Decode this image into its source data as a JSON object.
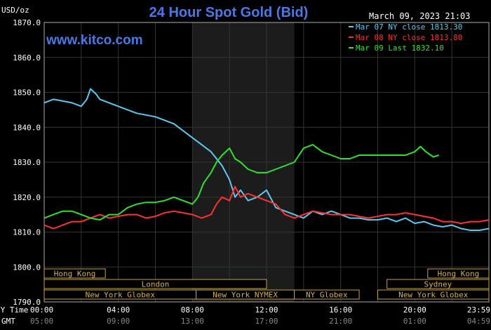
{
  "chart_data": {
    "type": "line",
    "title": "24 Hour Spot Gold (Bid)",
    "watermark": "www.kitco.com",
    "timestamp": "March 09, 2023 21:03",
    "ylabel": "USD/oz",
    "ylim": [
      1790,
      1870
    ],
    "yticks": [
      "1870.0",
      "1860.0",
      "1850.0",
      "1840.0",
      "1830.0",
      "1820.0",
      "1810.0",
      "1800.0",
      "1790.0"
    ],
    "xlabel_top": "NY Time",
    "xlabel_bottom": "GMT",
    "xticks_ny": [
      "00:00",
      "04:00",
      "08:00",
      "12:00",
      "16:00",
      "20:00",
      "23:59"
    ],
    "xticks_gmt": [
      "05:00",
      "09:00",
      "13:00",
      "17:00",
      "21:00",
      "01:00",
      "04:59"
    ],
    "sessions": [
      {
        "name": "Hong Kong",
        "row": 1,
        "start": 0.0,
        "end": 3.3
      },
      {
        "name": "Hong Kong",
        "row": 1,
        "start": 20.7,
        "end": 24.0
      },
      {
        "name": "London",
        "row": 2,
        "start": 0.0,
        "end": 12.0
      },
      {
        "name": "Sydney",
        "row": 2,
        "start": 18.5,
        "end": 24.0
      },
      {
        "name": "New York Globex",
        "row": 3,
        "start": 0.0,
        "end": 8.2
      },
      {
        "name": "New York NYMEX",
        "row": 3,
        "start": 8.2,
        "end": 13.5
      },
      {
        "name": "NY Globex",
        "row": 3,
        "start": 13.5,
        "end": 17.0
      },
      {
        "name": "New York Globex",
        "row": 3,
        "start": 18.0,
        "end": 24.0
      }
    ],
    "shaded_period": [
      8.0,
      13.5
    ],
    "grid": true,
    "series": [
      {
        "name": "Mar 07 NY close 1813.30",
        "color": "#5cc8f0",
        "x": [
          0,
          0.5,
          1.0,
          1.5,
          2.0,
          2.3,
          2.5,
          2.8,
          3.0,
          3.5,
          4.0,
          4.5,
          5.0,
          5.5,
          6.0,
          6.5,
          7.0,
          7.5,
          8.0,
          8.5,
          9.0,
          9.3,
          9.6,
          10.0,
          10.3,
          10.6,
          11.0,
          11.5,
          12.0,
          12.5,
          13.0,
          13.5,
          14.0,
          14.5,
          15.0,
          15.5,
          16.0,
          16.5,
          17.0,
          17.5,
          18.0,
          18.5,
          19.0,
          19.5,
          20.0,
          20.5,
          21.0,
          21.5,
          22.0,
          22.5,
          23.0,
          23.5,
          24.0
        ],
        "y": [
          1847,
          1848,
          1847.5,
          1847,
          1846,
          1848,
          1851,
          1849.5,
          1848,
          1847,
          1846,
          1845,
          1844,
          1843.5,
          1843,
          1842,
          1841,
          1839,
          1837,
          1835,
          1833,
          1831,
          1829,
          1825,
          1820,
          1822,
          1819,
          1820,
          1822,
          1817,
          1816,
          1815,
          1814,
          1816,
          1815,
          1816,
          1815,
          1814,
          1814,
          1813.5,
          1813.5,
          1814,
          1813,
          1814,
          1812.5,
          1813,
          1812,
          1811.5,
          1812,
          1811,
          1810.5,
          1810.5,
          1811
        ]
      },
      {
        "name": "Mar 08 NY close 1813.80",
        "color": "#ff3030",
        "x": [
          0,
          0.5,
          1.0,
          1.5,
          2.0,
          2.5,
          3.0,
          3.5,
          4.0,
          4.5,
          5.0,
          5.5,
          6.0,
          6.5,
          7.0,
          7.5,
          8.0,
          8.5,
          9.0,
          9.3,
          9.6,
          10.0,
          10.3,
          10.6,
          11.0,
          11.5,
          12.0,
          12.5,
          13.0,
          13.5,
          14.0,
          14.5,
          15.0,
          15.5,
          16.0,
          16.5,
          17.0,
          17.5,
          18.0,
          18.5,
          19.0,
          19.5,
          20.0,
          20.5,
          21.0,
          21.5,
          22.0,
          22.5,
          23.0,
          23.5,
          24.0
        ],
        "y": [
          1812,
          1811,
          1812,
          1813,
          1813,
          1814,
          1815,
          1814,
          1814.5,
          1815,
          1815,
          1814,
          1814.5,
          1815.5,
          1816,
          1815.5,
          1815,
          1814,
          1815,
          1818,
          1820,
          1819,
          1823,
          1820,
          1821,
          1820,
          1819,
          1818,
          1815,
          1814,
          1815,
          1816,
          1815.5,
          1815,
          1815,
          1815,
          1814.5,
          1814,
          1814.5,
          1815,
          1815,
          1815.5,
          1815,
          1814.5,
          1814,
          1813,
          1813,
          1812.5,
          1813,
          1813,
          1813.5
        ]
      },
      {
        "name": "Mar 09 Last 1832.10",
        "color": "#30e030",
        "x": [
          0,
          0.5,
          1.0,
          1.5,
          2.0,
          2.5,
          3.0,
          3.5,
          4.0,
          4.5,
          5.0,
          5.5,
          6.0,
          6.5,
          7.0,
          7.5,
          8.0,
          8.3,
          8.6,
          9.0,
          9.3,
          9.6,
          10.0,
          10.3,
          10.6,
          11.0,
          11.5,
          12.0,
          12.5,
          13.0,
          13.5,
          14.0,
          14.5,
          15.0,
          15.5,
          16.0,
          16.5,
          17.0,
          17.5,
          18.0,
          18.5,
          19.0,
          19.5,
          20.0,
          20.3,
          20.6,
          21.0,
          21.3
        ],
        "y": [
          1814,
          1815,
          1816,
          1816,
          1815,
          1814,
          1813.5,
          1815,
          1815,
          1817,
          1818,
          1818.5,
          1818.5,
          1819,
          1820,
          1819,
          1818,
          1820,
          1824,
          1827,
          1830,
          1832,
          1834,
          1831,
          1830,
          1828,
          1827,
          1827,
          1828,
          1829,
          1830,
          1834,
          1835,
          1833,
          1832,
          1831,
          1831,
          1832,
          1832,
          1832,
          1832,
          1832,
          1832,
          1833,
          1834.5,
          1833,
          1831.5,
          1832
        ]
      }
    ]
  }
}
